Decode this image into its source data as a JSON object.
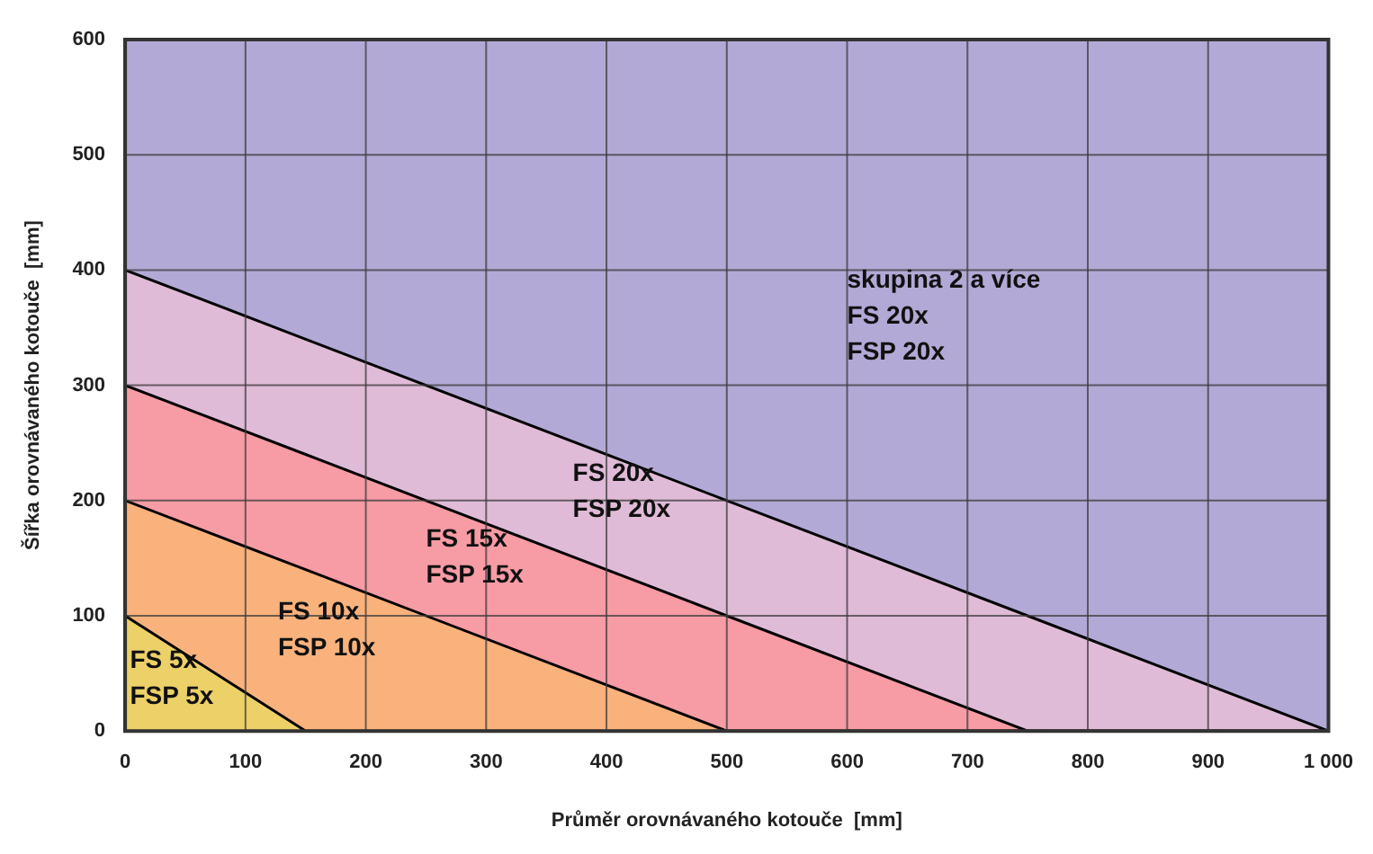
{
  "chart_data": {
    "type": "area",
    "xlabel": "Průměr orovnávaného kotouče  [mm]",
    "ylabel": "Šířka orovnávaného kotouče  [mm]",
    "xlim": [
      0,
      1000
    ],
    "ylim": [
      0,
      600
    ],
    "xticks": [
      0,
      100,
      200,
      300,
      400,
      500,
      600,
      700,
      800,
      900,
      {
        "value": 1000,
        "label": "1 000"
      }
    ],
    "yticks": [
      0,
      100,
      200,
      300,
      400,
      500,
      600
    ],
    "grid": true,
    "legend": false,
    "marker": "none",
    "line_style": "solid",
    "stacked": true,
    "x": [
      0,
      150,
      500,
      750,
      1000
    ],
    "series": [
      {
        "color": "#ecd068",
        "values": [
          100,
          0,
          0,
          0,
          0
        ]
      },
      {
        "color": "#f9b27c",
        "values": [
          100,
          140,
          0,
          0,
          0
        ]
      },
      {
        "color": "#f79ba5",
        "values": [
          100,
          100,
          100,
          0,
          0
        ]
      },
      {
        "color": "#e0bbd8",
        "values": [
          100,
          100,
          100,
          100,
          0
        ]
      },
      {
        "color": "#b3a9d6",
        "values": [
          200,
          260,
          400,
          500,
          600
        ]
      }
    ],
    "annotations": [
      "skupina 2 a více\nFS 20x\nFSP 20x",
      "FS 20x\nFSP 20x",
      "FS 15x\nFSP 15x",
      "FS 10x\nFSP 10x",
      "FS 5x\nFSP 5x"
    ]
  }
}
